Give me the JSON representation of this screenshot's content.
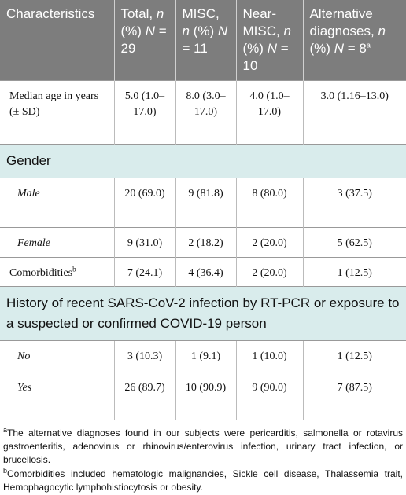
{
  "table": {
    "header": [
      [
        {
          "text": "Characteristics"
        }
      ],
      [
        {
          "text": "Total,"
        },
        {
          "text": "n",
          "italic": true
        },
        {
          "text": "(%)"
        },
        {
          "text": "N",
          "italic": true
        },
        {
          "text": "="
        },
        {
          "text": "29"
        }
      ],
      [
        {
          "text": "MISC,"
        },
        {
          "text": "n",
          "italic": true
        },
        {
          "text": "(%)"
        },
        {
          "text": "N",
          "italic": true
        },
        {
          "text": "="
        },
        {
          "text": "11"
        }
      ],
      [
        {
          "text": "Near-MISC,"
        },
        {
          "text": "n",
          "italic": true
        },
        {
          "text": "(%)"
        },
        {
          "text": "N",
          "italic": true
        },
        {
          "text": "= 10"
        }
      ],
      [
        {
          "text": "Alternative diagnoses,"
        },
        {
          "text": "n",
          "italic": true
        },
        {
          "text": "(%)"
        },
        {
          "text": "N",
          "italic": true
        },
        {
          "text": "= 8"
        },
        {
          "text": "a",
          "sup": true
        }
      ]
    ],
    "rows": [
      {
        "label": [
          {
            "text": "Median age in years (± SD)"
          }
        ],
        "cells": [
          "5.0 (1.0–17.0)",
          "8.0 (3.0–17.0)",
          "4.0 (1.0–17.0)",
          "3.0 (1.16–13.0)"
        ]
      },
      {
        "section": "Gender"
      },
      {
        "label": [
          {
            "text": "Male",
            "italic": true
          }
        ],
        "cells": [
          "20 (69.0)",
          "9 (81.8)",
          "8 (80.0)",
          "3 (37.5)"
        ]
      },
      {
        "label": [
          {
            "text": "Female",
            "italic": true
          }
        ],
        "cells": [
          "9 (31.0)",
          "2 (18.2)",
          "2 (20.0)",
          "5 (62.5)"
        ]
      },
      {
        "label": [
          {
            "text": "Comorbidities"
          },
          {
            "text": "b",
            "sup": true
          }
        ],
        "cells": [
          "7 (24.1)",
          "4 (36.4)",
          "2 (20.0)",
          "1 (12.5)"
        ]
      },
      {
        "section": "History of recent SARS-CoV-2 infection by RT-PCR or exposure to a suspected or confirmed COVID-19 person"
      },
      {
        "label": [
          {
            "text": "No",
            "italic": true
          }
        ],
        "cells": [
          "3 (10.3)",
          "1 (9.1)",
          "1 (10.0)",
          "1 (12.5)"
        ]
      },
      {
        "label": [
          {
            "text": "Yes",
            "italic": true
          }
        ],
        "cells": [
          "26 (89.7)",
          "10 (90.9)",
          "9 (90.0)",
          "7 (87.5)"
        ]
      }
    ]
  },
  "footnotes": [
    {
      "mark": "a",
      "text": "The alternative diagnoses found in our subjects were pericarditis, salmonella or rotavirus gastroenteritis, adenovirus or rhinovirus/enterovirus infection, urinary tract infection, or brucellosis."
    },
    {
      "mark": "b",
      "text": "Comorbidities included hematologic malignancies, Sickle cell disease, Thalassemia trait, Hemophagocytic lymphohistiocytosis or obesity."
    }
  ]
}
